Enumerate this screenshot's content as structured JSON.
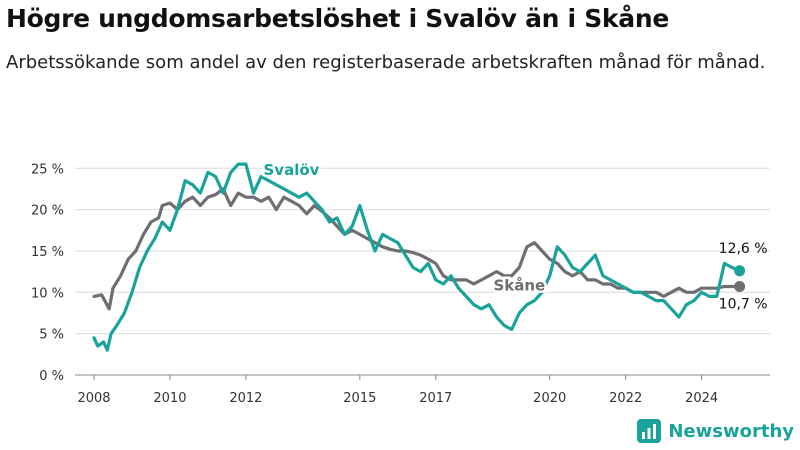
{
  "chart_data": {
    "type": "line",
    "title": "Högre ungdomsarbetslöshet i Svalöv än i Skåne",
    "subtitle": "Arbetssökande som andel av den registerbaserade arbetskraften månad för månad.",
    "ylim": [
      0,
      26
    ],
    "yticks": [
      0,
      5,
      10,
      15,
      20,
      25
    ],
    "ytick_labels": [
      "0 %",
      "5 %",
      "10 %",
      "15 %",
      "20 %",
      "25 %"
    ],
    "xlim": [
      2007.5,
      2025.8
    ],
    "xticks": [
      2008,
      2010,
      2012,
      2015,
      2017,
      2020,
      2022,
      2024
    ],
    "xtick_labels": [
      "2008",
      "2010",
      "2012",
      "2015",
      "2017",
      "2020",
      "2022",
      "2024"
    ],
    "grid": "horizontal",
    "series": [
      {
        "name": "Skåne",
        "color": "#6e6e73",
        "end_label": "10,7 %",
        "x": [
          2008.0,
          2008.2,
          2008.4,
          2008.5,
          2008.7,
          2008.9,
          2009.1,
          2009.3,
          2009.5,
          2009.7,
          2009.8,
          2010.0,
          2010.2,
          2010.4,
          2010.6,
          2010.8,
          2011.0,
          2011.2,
          2011.4,
          2011.6,
          2011.8,
          2012.0,
          2012.2,
          2012.4,
          2012.6,
          2012.8,
          2013.0,
          2013.2,
          2013.4,
          2013.6,
          2013.8,
          2014.0,
          2014.2,
          2014.4,
          2014.6,
          2014.8,
          2015.0,
          2015.2,
          2015.4,
          2015.6,
          2015.8,
          2016.0,
          2016.2,
          2016.4,
          2016.6,
          2016.8,
          2017.0,
          2017.2,
          2017.4,
          2017.6,
          2017.8,
          2018.0,
          2018.2,
          2018.4,
          2018.6,
          2018.8,
          2019.0,
          2019.2,
          2019.4,
          2019.6,
          2019.8,
          2020.0,
          2020.2,
          2020.4,
          2020.6,
          2020.8,
          2021.0,
          2021.2,
          2021.4,
          2021.6,
          2021.8,
          2022.0,
          2022.2,
          2022.4,
          2022.6,
          2022.8,
          2023.0,
          2023.2,
          2023.4,
          2023.6,
          2023.8,
          2024.0,
          2024.2,
          2024.4,
          2024.6,
          2024.8,
          2025.0
        ],
        "values": [
          9.5,
          9.7,
          8.0,
          10.5,
          12.0,
          14.0,
          15.0,
          17.0,
          18.5,
          19.0,
          20.5,
          20.8,
          20.0,
          21.0,
          21.5,
          20.5,
          21.5,
          21.8,
          22.5,
          20.5,
          22.0,
          21.5,
          21.5,
          21.0,
          21.5,
          20.0,
          21.5,
          21.0,
          20.5,
          19.5,
          20.5,
          19.8,
          19.0,
          18.0,
          17.0,
          17.5,
          17.0,
          16.5,
          16.0,
          15.5,
          15.2,
          15.0,
          15.0,
          14.8,
          14.5,
          14.0,
          13.5,
          12.0,
          11.5,
          11.5,
          11.5,
          11.0,
          11.5,
          12.0,
          12.5,
          12.0,
          12.0,
          13.0,
          15.5,
          16.0,
          15.0,
          14.0,
          13.5,
          12.5,
          12.0,
          12.5,
          11.5,
          11.5,
          11.0,
          11.0,
          10.5,
          10.5,
          10.0,
          10.0,
          10.0,
          10.0,
          9.5,
          10.0,
          10.5,
          10.0,
          10.0,
          10.5,
          10.5,
          10.5,
          10.7,
          10.7,
          10.7
        ]
      },
      {
        "name": "Svalöv",
        "color": "#1aa39a",
        "end_label": "12,6 %",
        "x": [
          2008.0,
          2008.1,
          2008.25,
          2008.35,
          2008.45,
          2008.6,
          2008.8,
          2009.0,
          2009.2,
          2009.4,
          2009.6,
          2009.8,
          2010.0,
          2010.2,
          2010.4,
          2010.6,
          2010.8,
          2011.0,
          2011.2,
          2011.4,
          2011.6,
          2011.8,
          2012.0,
          2012.2,
          2012.4,
          2012.6,
          2012.8,
          2013.0,
          2013.2,
          2013.4,
          2013.6,
          2013.8,
          2014.0,
          2014.2,
          2014.4,
          2014.6,
          2014.8,
          2015.0,
          2015.2,
          2015.4,
          2015.6,
          2015.8,
          2016.0,
          2016.2,
          2016.4,
          2016.6,
          2016.8,
          2017.0,
          2017.2,
          2017.4,
          2017.6,
          2017.8,
          2018.0,
          2018.2,
          2018.4,
          2018.6,
          2018.8,
          2019.0,
          2019.2,
          2019.4,
          2019.6,
          2019.8,
          2020.0,
          2020.2,
          2020.4,
          2020.6,
          2020.8,
          2021.0,
          2021.2,
          2021.4,
          2021.6,
          2021.8,
          2022.0,
          2022.2,
          2022.4,
          2022.6,
          2022.8,
          2023.0,
          2023.2,
          2023.4,
          2023.6,
          2023.8,
          2024.0,
          2024.2,
          2024.4,
          2024.6,
          2024.8,
          2025.0
        ],
        "values": [
          4.5,
          3.5,
          4.0,
          3.0,
          5.0,
          6.0,
          7.5,
          10.0,
          13.0,
          15.0,
          16.5,
          18.5,
          17.5,
          20.0,
          23.5,
          23.0,
          22.0,
          24.5,
          24.0,
          22.0,
          24.5,
          25.5,
          25.5,
          22.0,
          24.0,
          23.5,
          23.0,
          22.5,
          22.0,
          21.5,
          22.0,
          21.0,
          20.0,
          18.5,
          19.0,
          17.0,
          18.0,
          20.5,
          17.5,
          15.0,
          17.0,
          16.5,
          16.0,
          14.5,
          13.0,
          12.5,
          13.5,
          11.5,
          11.0,
          12.0,
          10.5,
          9.5,
          8.5,
          8.0,
          8.5,
          7.0,
          6.0,
          5.5,
          7.5,
          8.5,
          9.0,
          10.0,
          12.0,
          15.5,
          14.5,
          13.0,
          12.5,
          13.5,
          14.5,
          12.0,
          11.5,
          11.0,
          10.5,
          10.0,
          10.0,
          9.5,
          9.0,
          9.0,
          8.0,
          7.0,
          8.5,
          9.0,
          10.0,
          9.5,
          9.5,
          13.5,
          13.0,
          12.6
        ]
      }
    ]
  },
  "brand": {
    "name": "Newsworthy"
  }
}
